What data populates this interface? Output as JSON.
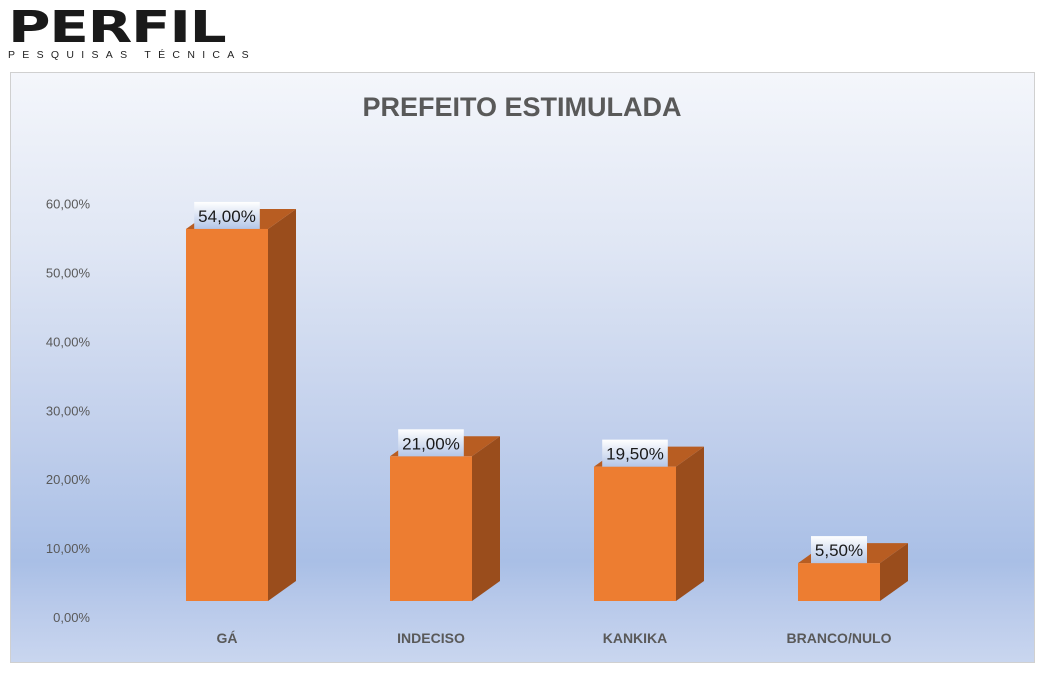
{
  "logo": {
    "name": "PERFIL",
    "tagline": "PESQUISAS TÉCNICAS"
  },
  "chart_data": {
    "type": "bar",
    "title": "PREFEITO ESTIMULADA",
    "categories": [
      "GÁ",
      "INDECISO",
      "KANKIKA",
      "BRANCO/NULO"
    ],
    "values": [
      54.0,
      21.0,
      19.5,
      5.5
    ],
    "data_labels": [
      "54,00%",
      "21,00%",
      "19,50%",
      "5,50%"
    ],
    "yticks": [
      "0,00%",
      "10,00%",
      "20,00%",
      "30,00%",
      "40,00%",
      "50,00%",
      "60,00%"
    ],
    "ylim": [
      0,
      60
    ],
    "xlabel": "",
    "ylabel": "",
    "grid": false,
    "legend": "none",
    "colors": {
      "front": "#ed7d31",
      "side": "#9a4d1c",
      "top": "#b85d22"
    }
  }
}
